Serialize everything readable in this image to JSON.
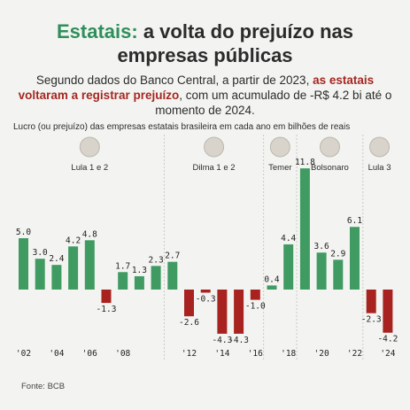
{
  "header": {
    "title_highlight": "Estatais:",
    "title_rest": " a volta do prejuízo nas",
    "title_line2": "empresas públicas",
    "subtitle_part1": "Segundo dados do Banco Central, a partir de 2023,",
    "subtitle_highlight": "as estatais voltaram a registrar prejuízo",
    "subtitle_part2": ", com um acumulado de -R$ 4.2 bi até o momento de 2024.",
    "chart_caption": "Lucro (ou prejuízo) das empresas estatais brasileira em cada ano em bilhões de reais"
  },
  "footer": {
    "source": "Fonte: BCB"
  },
  "colors": {
    "positive": "#3f9b62",
    "negative": "#a8231f",
    "highlight_green": "#2f8f5b",
    "highlight_red": "#a52722"
  },
  "chart_data": {
    "type": "bar",
    "categories": [
      "2002",
      "2003",
      "2004",
      "2005",
      "2006",
      "2007",
      "2008",
      "2009",
      "2010",
      "2011",
      "2012",
      "2013",
      "2014",
      "2015",
      "2016",
      "2017",
      "2018",
      "2019",
      "2020",
      "2021",
      "2022",
      "2023",
      "2024"
    ],
    "values": [
      5.0,
      3.0,
      2.4,
      4.2,
      4.8,
      -1.3,
      1.7,
      1.3,
      2.3,
      2.7,
      -2.6,
      -0.3,
      -4.3,
      -4.3,
      -1.0,
      0.4,
      4.4,
      11.8,
      3.6,
      2.9,
      6.1,
      -2.3,
      -4.2
    ],
    "value_labels": [
      "5.0",
      "3.0",
      "2.4",
      "4.2",
      "4.8",
      "-1.3",
      "1.7",
      "1.3",
      "2.3",
      "2.7",
      "-2.6",
      "-0.3",
      "-4.3",
      "-4.3",
      "-1.0",
      "0.4",
      "4.4",
      "11.8",
      "3.6",
      "2.9",
      "6.1",
      "-2.3",
      "-4.2"
    ],
    "x_tick_labels": [
      {
        "index": 0,
        "label": "'02"
      },
      {
        "index": 2,
        "label": "'04"
      },
      {
        "index": 4,
        "label": "'06"
      },
      {
        "index": 6,
        "label": "'08"
      },
      {
        "index": 10,
        "label": "'12"
      },
      {
        "index": 12,
        "label": "'14"
      },
      {
        "index": 14,
        "label": "'16"
      },
      {
        "index": 16,
        "label": "'18"
      },
      {
        "index": 18,
        "label": "'20"
      },
      {
        "index": 20,
        "label": "'22"
      },
      {
        "index": 22,
        "label": "'24"
      }
    ],
    "presidencies": [
      {
        "label": "Lula 1 e 2",
        "start_index": 0,
        "end_index": 8
      },
      {
        "label": "Dilma 1 e 2",
        "start_index": 9,
        "end_index": 14
      },
      {
        "label": "Temer",
        "start_index": 15,
        "end_index": 16
      },
      {
        "label": "Bolsonaro",
        "start_index": 17,
        "end_index": 20
      },
      {
        "label": "Lula 3",
        "start_index": 21,
        "end_index": 22
      }
    ],
    "ylim": [
      -5,
      12
    ],
    "grid": false,
    "legend": "none"
  }
}
